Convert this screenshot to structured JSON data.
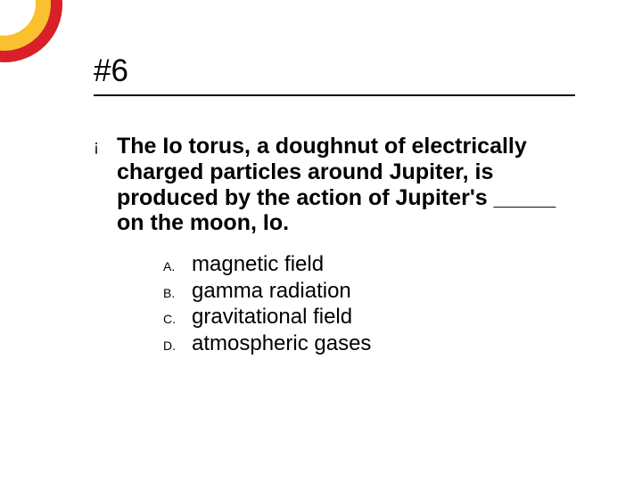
{
  "slide": {
    "title": "#6",
    "question_bullet": "¡",
    "question": "The Io torus, a doughnut of electrically charged particles around Jupiter, is produced by the action of Jupiter's _____ on the moon, Io.",
    "options": [
      {
        "letter": "A.",
        "text": "magnetic field"
      },
      {
        "letter": "B.",
        "text": "gamma radiation"
      },
      {
        "letter": "C.",
        "text": "gravitational field"
      },
      {
        "letter": "D.",
        "text": "atmospheric gases"
      }
    ],
    "colors": {
      "red": "#d82028",
      "yellow": "#f9c12f",
      "white": "#ffffff",
      "text": "#000000",
      "underline": "#000000"
    },
    "fonts": {
      "title_size": 35,
      "question_size": 25,
      "option_letter_size": 14,
      "option_text_size": 24
    }
  }
}
